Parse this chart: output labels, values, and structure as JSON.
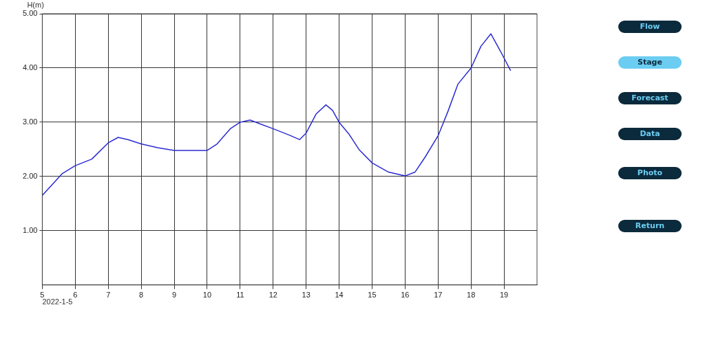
{
  "chart_data": [
    {
      "type": "line",
      "ylabel": "H(m)",
      "xlabel": "2022-1-5",
      "xlim": [
        5,
        20
      ],
      "xticks": [
        5,
        6,
        7,
        8,
        9,
        10,
        11,
        12,
        13,
        14,
        15,
        16,
        17,
        18,
        19
      ],
      "ylim": [
        0,
        5
      ],
      "yticks": [
        {
          "value": 1,
          "label": "1.00"
        },
        {
          "value": 2,
          "label": "2.00"
        },
        {
          "value": 3,
          "label": "3.00"
        },
        {
          "value": 4,
          "label": "4.00"
        },
        {
          "value": 5,
          "label": "5.00"
        }
      ],
      "grid": true,
      "legend": false,
      "marker": "none",
      "line_style": "solid",
      "series": [
        {
          "color": "#2b2bd0",
          "x": [
            5.0,
            5.3,
            5.6,
            6.0,
            6.5,
            7.0,
            7.3,
            7.6,
            8.0,
            8.5,
            9.0,
            9.5,
            10.0,
            10.3,
            10.7,
            11.0,
            11.3,
            11.6,
            12.0,
            12.5,
            12.8,
            13.0,
            13.3,
            13.6,
            13.8,
            14.0,
            14.3,
            14.6,
            15.0,
            15.5,
            16.0,
            16.3,
            16.6,
            17.0,
            17.3,
            17.6,
            18.0,
            18.3,
            18.6,
            18.9,
            19.2
          ],
          "values": [
            1.65,
            1.85,
            2.05,
            2.2,
            2.32,
            2.62,
            2.72,
            2.68,
            2.6,
            2.53,
            2.48,
            2.48,
            2.48,
            2.6,
            2.88,
            3.0,
            3.04,
            2.97,
            2.88,
            2.76,
            2.68,
            2.8,
            3.15,
            3.32,
            3.22,
            3.0,
            2.78,
            2.5,
            2.25,
            2.08,
            2.01,
            2.08,
            2.35,
            2.75,
            3.2,
            3.7,
            4.0,
            4.4,
            4.63,
            4.3,
            3.95
          ]
        }
      ]
    },
    {
      "type": "other",
      "annotations": [
        "Flow",
        "Stage",
        "Forecast",
        "Data",
        "Photo",
        "Return"
      ],
      "colors": [
        "#0b2a3c",
        "#6ccdf2",
        "#0b2a3c",
        "#0b2a3c",
        "#0b2a3c",
        "#0b2a3c"
      ]
    }
  ]
}
